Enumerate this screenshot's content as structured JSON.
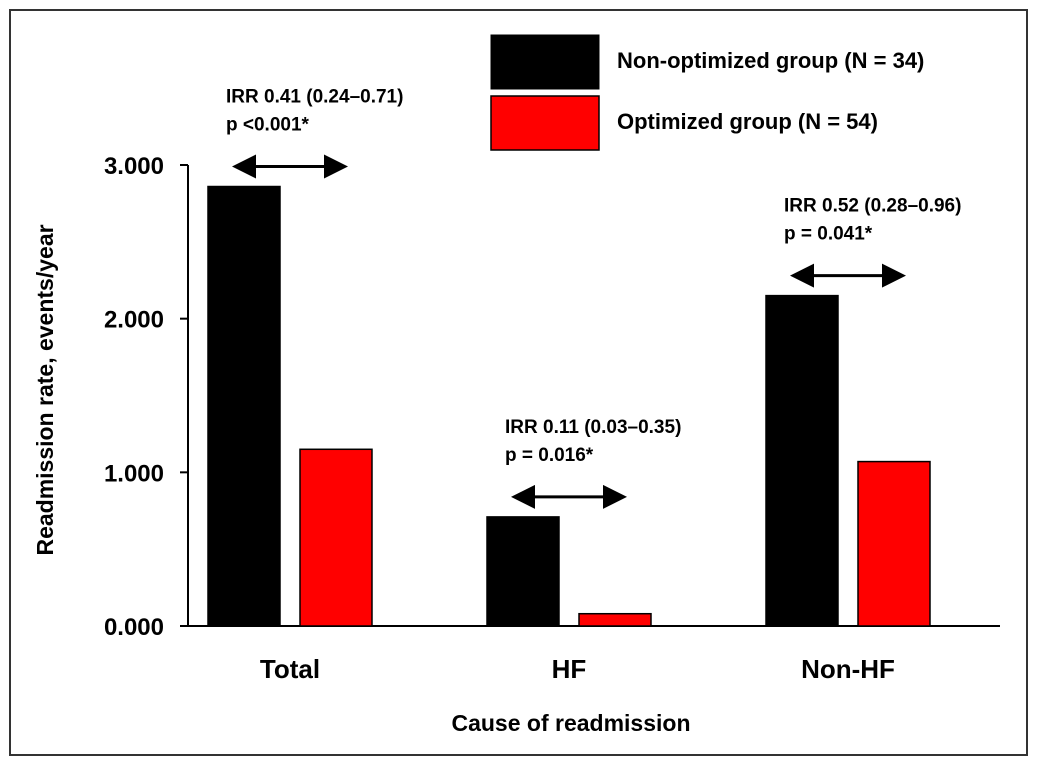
{
  "chart_data": {
    "type": "bar",
    "categories": [
      "Total",
      "HF",
      "Non-HF"
    ],
    "series": [
      {
        "name": "Non-optimized group (N = 34)",
        "color": "#000000",
        "values": [
          2.86,
          0.71,
          2.15
        ]
      },
      {
        "name": "Optimized group (N = 54)",
        "color": "#ff0000",
        "values": [
          1.15,
          0.08,
          1.07
        ]
      }
    ],
    "xlabel": "Cause of readmission",
    "ylabel": "Readmission rate, events/year",
    "ylim": [
      0,
      3
    ],
    "yticks": [
      0,
      1,
      2,
      3
    ],
    "ytick_labels": [
      "0.000",
      "1.000",
      "2.000",
      "3.000"
    ],
    "grid": false,
    "legend_position": "top-right",
    "annotations": [
      {
        "category": "Total",
        "line1": "IRR 0.41 (0.24–0.71)",
        "line2": "p <0.001*"
      },
      {
        "category": "HF",
        "line1": "IRR 0.11 (0.03–0.35)",
        "line2": "p = 0.016*"
      },
      {
        "category": "Non-HF",
        "line1": "IRR 0.52 (0.28–0.96)",
        "line2": "p = 0.041*"
      }
    ]
  }
}
